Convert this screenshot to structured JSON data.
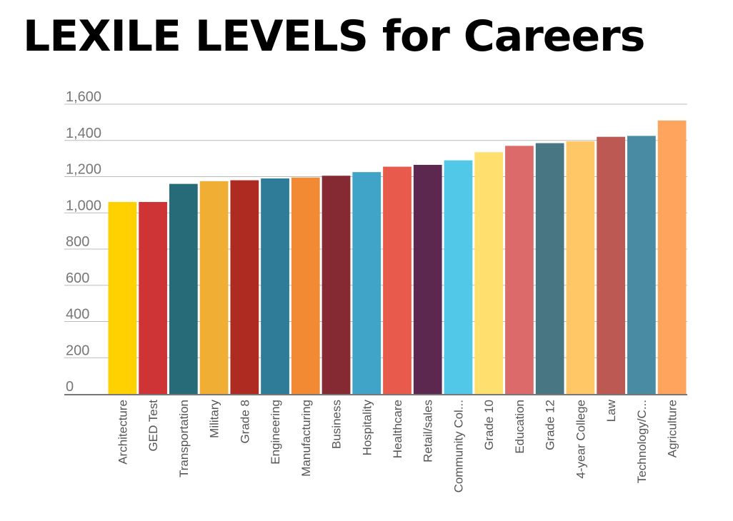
{
  "chart_data": {
    "type": "bar",
    "title": "LEXILE LEVELS for Careers",
    "xlabel": "",
    "ylabel": "",
    "ylim": [
      0,
      1600
    ],
    "yticks": [
      0,
      200,
      400,
      600,
      800,
      1000,
      1200,
      1400,
      1600
    ],
    "ytick_labels": [
      "0",
      "200",
      "400",
      "600",
      "800",
      "1,000",
      "1,200",
      "1,400",
      "1,600"
    ],
    "grid": true,
    "legend": "none",
    "categories": [
      "Architecture",
      "GED Test",
      "Transportation",
      "Military",
      "Grade 8",
      "Engineering",
      "Manufacturing",
      "Business",
      "Hospitality",
      "Healthcare",
      "Retail/sales",
      "Community Col...",
      "Grade 10",
      "Education",
      "Grade 12",
      "4-year College",
      "Law",
      "Technology/C...",
      "Agriculture"
    ],
    "values": [
      1060,
      1060,
      1160,
      1175,
      1180,
      1190,
      1195,
      1205,
      1225,
      1255,
      1265,
      1290,
      1335,
      1370,
      1385,
      1395,
      1420,
      1425,
      1510
    ],
    "colors": [
      "#FFD100",
      "#CE3436",
      "#276B78",
      "#F1AE35",
      "#AE2B22",
      "#2E7C98",
      "#F28A34",
      "#852A32",
      "#40A3C8",
      "#E85B4C",
      "#5D2850",
      "#52C8E8",
      "#FFE06F",
      "#DD6A6A",
      "#487783",
      "#FFC766",
      "#BB5952",
      "#498BA3",
      "#FFA45C"
    ]
  }
}
